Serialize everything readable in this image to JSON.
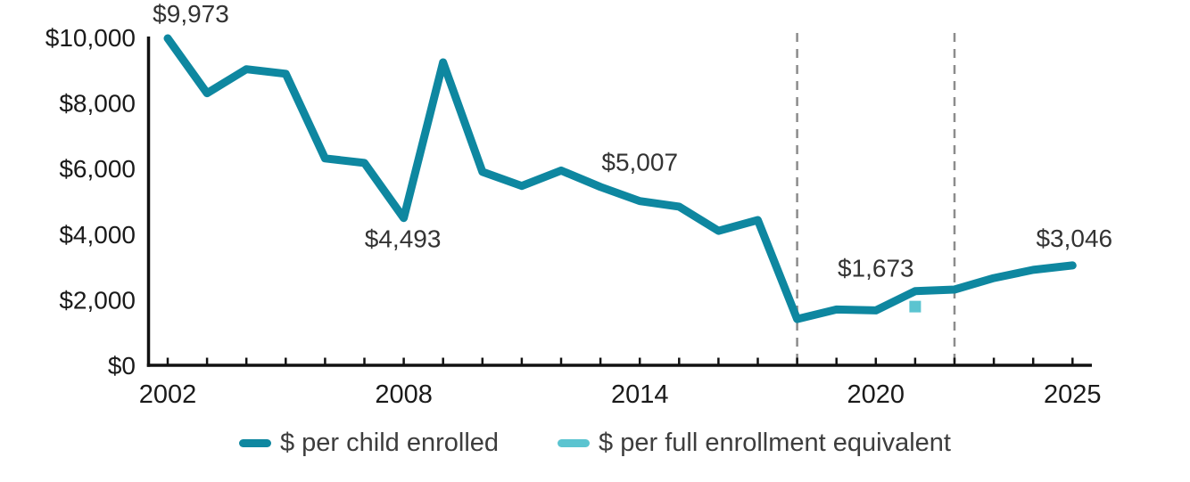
{
  "chart_data": {
    "type": "line",
    "title": "",
    "xlabel": "",
    "ylabel": "",
    "x_start_year": 2002,
    "x_end_year": 2025,
    "x": [
      2002,
      2003,
      2004,
      2005,
      2006,
      2007,
      2008,
      2009,
      2010,
      2011,
      2012,
      2013,
      2014,
      2015,
      2016,
      2017,
      2018,
      2019,
      2020,
      2021,
      2022,
      2023,
      2024,
      2025
    ],
    "series": [
      {
        "name": "$ per child enrolled",
        "color": "#0e87a0",
        "type": "line",
        "values": [
          9973,
          8300,
          9030,
          8890,
          6310,
          6170,
          4493,
          9240,
          5900,
          5470,
          5940,
          5440,
          5007,
          4840,
          4100,
          4430,
          1410,
          1700,
          1673,
          2260,
          2310,
          2660,
          2910,
          3046
        ]
      },
      {
        "name": "$ per full enrollment equivalent",
        "color": "#5bc4d0",
        "type": "point",
        "marker": "square",
        "points": [
          {
            "x": 2021,
            "y": 1790
          }
        ]
      }
    ],
    "data_labels": [
      {
        "year": 2002,
        "text": "$9,973"
      },
      {
        "year": 2008,
        "text": "$4,493"
      },
      {
        "year": 2014,
        "text": "$5,007"
      },
      {
        "year": 2020,
        "text": "$1,673"
      },
      {
        "year": 2025,
        "text": "$3,046"
      }
    ],
    "reference_lines": {
      "years": [
        2018,
        2022
      ],
      "style": "dashed",
      "color": "#8c8c8c"
    },
    "ylim": [
      0,
      10000
    ],
    "ytick_values": [
      0,
      2000,
      4000,
      6000,
      8000,
      10000
    ],
    "ytick_labels": [
      "$0",
      "$2,000",
      "$4,000",
      "$6,000",
      "$8,000",
      "$10,000"
    ],
    "xtick_labeled_years": [
      "2002",
      "2008",
      "2014",
      "2020",
      "2025"
    ],
    "grid": "off",
    "legend_position": "bottom-center",
    "axis_color": "#111111",
    "label_color": "#333333",
    "tick_label_color": "#1a1a1a"
  }
}
